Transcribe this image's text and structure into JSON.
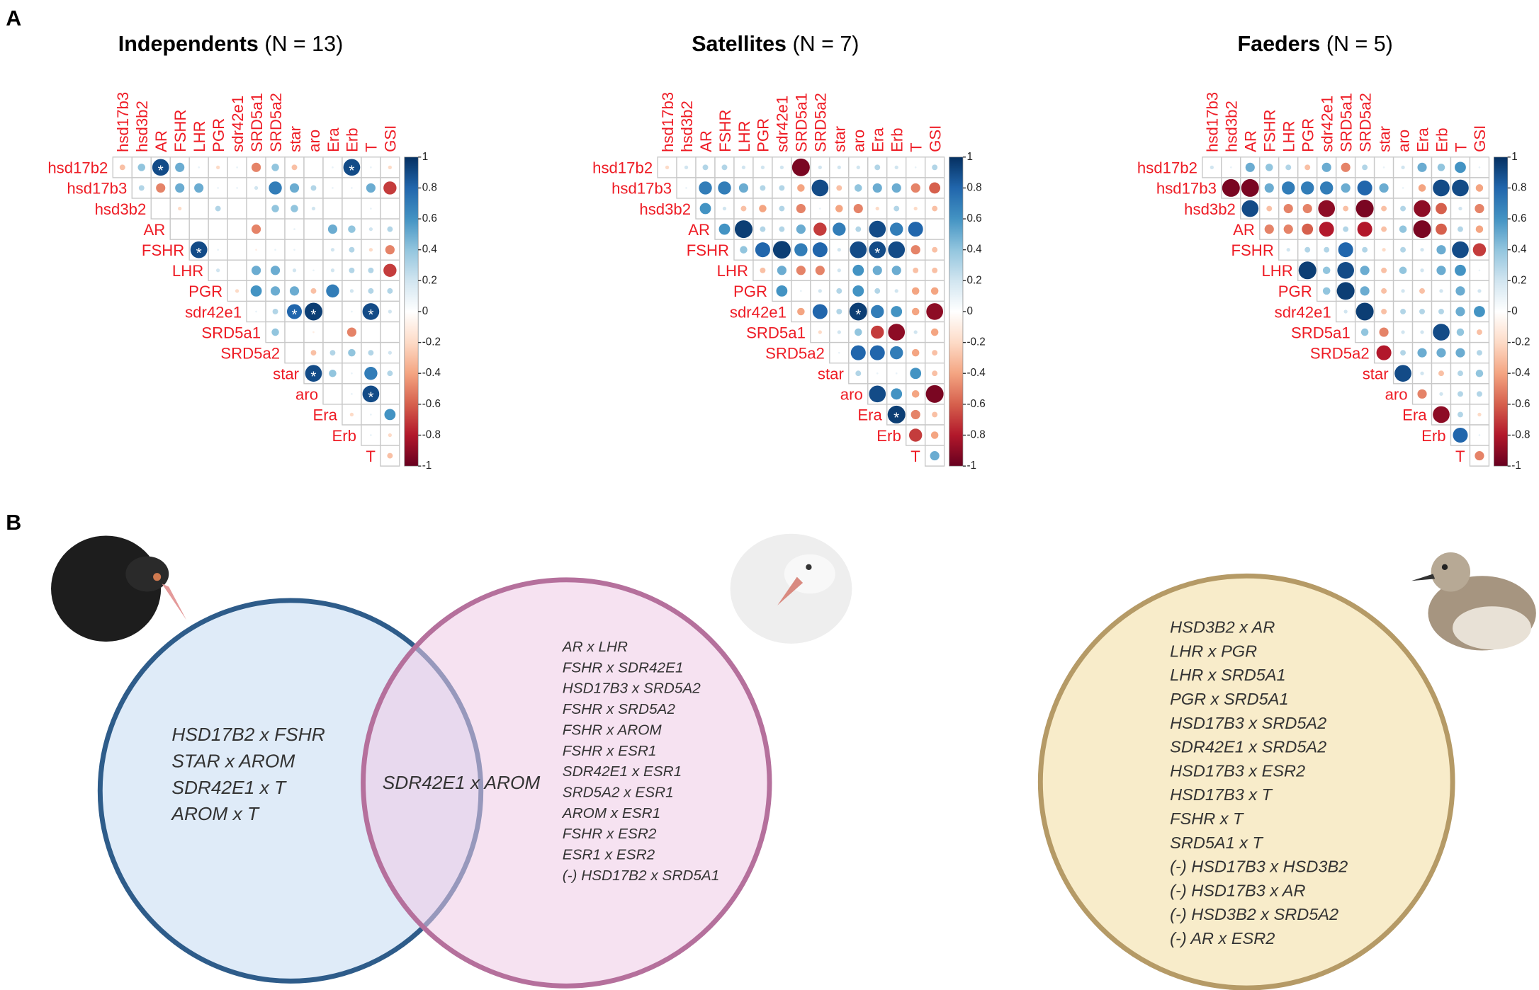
{
  "figure": {
    "panel_a_label": "A",
    "panel_b_label": "B"
  },
  "chart_data": [
    {
      "type": "corrplot",
      "title": "Independents",
      "subtitle": "(N = 13)",
      "rows": [
        "hsd17b2",
        "hsd17b3",
        "hsd3b2",
        "AR",
        "FSHR",
        "LHR",
        "PGR",
        "sdr42e1",
        "SRD5a1",
        "SRD5a2",
        "star",
        "aro",
        "Era",
        "Erb",
        "T"
      ],
      "cols": [
        "hsd17b3",
        "hsd3b2",
        "AR",
        "FSHR",
        "LHR",
        "PGR",
        "sdr42e1",
        "SRD5a1",
        "SRD5a2",
        "star",
        "aro",
        "Era",
        "Erb",
        "T",
        "GSI"
      ],
      "values": [
        [
          -0.3,
          0.4,
          0.9,
          0.5,
          0.1,
          -0.2,
          0.1,
          -0.5,
          0.4,
          -0.3,
          0,
          0.1,
          0.9,
          0.1,
          -0.2
        ],
        [
          0.3,
          -0.5,
          0.5,
          0.5,
          0.1,
          0.1,
          0.2,
          0.7,
          0.5,
          0.3,
          0.1,
          0.1,
          0.5,
          -0.7
        ],
        [
          0,
          -0.2,
          0,
          0.3,
          0,
          0,
          0.4,
          0.4,
          0.2,
          0,
          0,
          0.1,
          0
        ],
        [
          0,
          0,
          0,
          0,
          -0.5,
          0,
          0.1,
          0,
          0.5,
          0.4,
          0.2,
          0.3
        ],
        [
          0.9,
          0.1,
          0,
          -0.1,
          0.1,
          0.1,
          0,
          0.2,
          0.3,
          -0.2,
          -0.5
        ],
        [
          0.2,
          0,
          0.5,
          0.5,
          0.2,
          0.1,
          0.2,
          0.3,
          0.3,
          -0.7
        ],
        [
          -0.2,
          0.6,
          0.5,
          0.5,
          -0.3,
          0.7,
          0.2,
          0.3,
          0.3
        ],
        [
          0.1,
          0.3,
          0.8,
          0.95,
          0,
          0.1,
          0.9,
          0.2
        ],
        [
          0.4,
          0,
          -0.1,
          0,
          -0.5,
          0,
          0
        ],
        [
          0,
          -0.3,
          0.3,
          0.4,
          0.3,
          0.2
        ],
        [
          0.9,
          0.4,
          0.1,
          0.7,
          0.3
        ],
        [
          0,
          0.1,
          0.9,
          0
        ],
        [
          -0.2,
          0.1,
          0.6
        ],
        [
          0.1,
          -0.2
        ],
        [
          -0.3
        ]
      ],
      "stars": [
        [
          0,
          2
        ],
        [
          0,
          12
        ],
        [
          4,
          0
        ],
        [
          7,
          2
        ],
        [
          7,
          3
        ],
        [
          7,
          6
        ],
        [
          10,
          0
        ],
        [
          11,
          2
        ]
      ],
      "star_label": "*",
      "clim": [
        -1,
        1
      ],
      "cticks": [
        1,
        0.8,
        0.6,
        0.4,
        0.2,
        0,
        -0.2,
        -0.4,
        -0.6,
        -0.8,
        -1
      ],
      "colors": [
        "#67001F",
        "#B2182B",
        "#D6604D",
        "#F4A582",
        "#FDDBC7",
        "#FFFFFF",
        "#D1E5F0",
        "#92C5DE",
        "#4393C3",
        "#2166AC",
        "#053061"
      ]
    },
    {
      "type": "corrplot",
      "title": "Satellites",
      "subtitle": "(N = 7)",
      "rows": [
        "hsd17b2",
        "hsd17b3",
        "hsd3b2",
        "AR",
        "FSHR",
        "LHR",
        "PGR",
        "sdr42e1",
        "SRD5a1",
        "SRD5a2",
        "star",
        "aro",
        "Era",
        "Erb",
        "T"
      ],
      "cols": [
        "hsd17b3",
        "hsd3b2",
        "AR",
        "FSHR",
        "LHR",
        "PGR",
        "sdr42e1",
        "SRD5a1",
        "SRD5a2",
        "star",
        "aro",
        "Era",
        "Erb",
        "T",
        "GSI"
      ],
      "values": [
        [
          -0.2,
          0.2,
          0.3,
          0.3,
          0.2,
          0.2,
          0.2,
          -0.95,
          0.2,
          0.2,
          0.2,
          0.3,
          0.2,
          0.1,
          0.3
        ],
        [
          0.1,
          0.7,
          0.7,
          0.5,
          0.3,
          0.3,
          -0.4,
          0.9,
          -0.3,
          0.4,
          0.5,
          0.5,
          -0.5,
          -0.6
        ],
        [
          0.6,
          0.2,
          -0.3,
          -0.4,
          0.3,
          -0.5,
          0.1,
          -0.4,
          -0.5,
          -0.2,
          0.3,
          -0.2,
          -0.3
        ],
        [
          0.6,
          0.95,
          0.3,
          0.3,
          0.5,
          -0.7,
          0.7,
          0.3,
          0.9,
          0.7,
          0.8,
          0
        ],
        [
          0.4,
          0.8,
          0.95,
          0.7,
          0.8,
          0.2,
          0.9,
          0.9,
          0.9,
          -0.5,
          -0.3
        ],
        [
          -0.3,
          0.5,
          -0.5,
          -0.5,
          0.2,
          0.6,
          0.5,
          0.5,
          -0.3,
          -0.3
        ],
        [
          0.6,
          0.1,
          0.2,
          0.3,
          0.6,
          0.3,
          0.2,
          -0.4,
          -0.4
        ],
        [
          -0.4,
          0.8,
          0.3,
          0.95,
          0.7,
          0.6,
          -0.4,
          -0.9
        ],
        [
          -0.2,
          0.2,
          0.4,
          -0.7,
          -0.9,
          0.2,
          -0.4
        ],
        [
          0.1,
          0.8,
          0.8,
          0.7,
          -0.4,
          -0.3
        ],
        [
          0.3,
          0.1,
          0.1,
          0.6,
          -0.3
        ],
        [
          0.9,
          0.6,
          -0.4,
          -0.95
        ],
        [
          0.95,
          -0.5,
          -0.3
        ],
        [
          -0.7,
          -0.4
        ],
        [
          0.5
        ]
      ],
      "stars": [
        [
          4,
          7
        ],
        [
          7,
          3
        ],
        [
          12,
          0
        ]
      ],
      "star_label": "*",
      "clim": [
        -1,
        1
      ],
      "cticks": [
        1,
        0.8,
        0.6,
        0.4,
        0.2,
        0,
        -0.2,
        -0.4,
        -0.6,
        -0.8,
        -1
      ],
      "colors": [
        "#67001F",
        "#B2182B",
        "#D6604D",
        "#F4A582",
        "#FDDBC7",
        "#FFFFFF",
        "#D1E5F0",
        "#92C5DE",
        "#4393C3",
        "#2166AC",
        "#053061"
      ]
    },
    {
      "type": "corrplot",
      "title": "Faeders",
      "subtitle": "(N = 5)",
      "rows": [
        "hsd17b2",
        "hsd17b3",
        "hsd3b2",
        "AR",
        "FSHR",
        "LHR",
        "PGR",
        "sdr42e1",
        "SRD5a1",
        "SRD5a2",
        "star",
        "aro",
        "Era",
        "Erb",
        "T"
      ],
      "cols": [
        "hsd17b3",
        "hsd3b2",
        "AR",
        "FSHR",
        "LHR",
        "PGR",
        "sdr42e1",
        "SRD5a1",
        "SRD5a2",
        "star",
        "aro",
        "Era",
        "Erb",
        "T",
        "GSI"
      ],
      "values": [
        [
          0.2,
          0.1,
          0.5,
          0.4,
          0.3,
          -0.3,
          0.5,
          -0.5,
          0.3,
          0.1,
          0.2,
          0.5,
          0.4,
          0.6,
          0.1
        ],
        [
          -0.95,
          -0.95,
          0.5,
          0.7,
          0.7,
          0.7,
          0.5,
          0.8,
          0.5,
          0.1,
          -0.4,
          0.9,
          0.9,
          -0.4
        ],
        [
          0.9,
          -0.3,
          -0.5,
          -0.5,
          -0.9,
          -0.3,
          -0.95,
          -0.3,
          0.3,
          -0.9,
          -0.6,
          0.2,
          -0.5
        ],
        [
          -0.5,
          -0.5,
          -0.6,
          -0.8,
          0.3,
          -0.8,
          -0.3,
          0.4,
          -0.95,
          -0.6,
          0.3,
          -0.4
        ],
        [
          0.2,
          0.3,
          0.3,
          0.8,
          0.3,
          -0.2,
          0.3,
          0.2,
          0.5,
          0.9,
          -0.7
        ],
        [
          0.95,
          0.4,
          0.9,
          0.5,
          -0.3,
          0.4,
          0.2,
          0.5,
          0.6,
          0.1
        ],
        [
          0.4,
          0.95,
          0.5,
          -0.3,
          0.2,
          -0.3,
          0.2,
          0.5,
          0.2
        ],
        [
          0.2,
          0.95,
          -0.3,
          0.3,
          0.3,
          0.3,
          0.5,
          0.6
        ],
        [
          0.4,
          -0.5,
          0.2,
          0.2,
          0.9,
          0.4,
          -0.3
        ],
        [
          -0.8,
          0.3,
          0.5,
          0.5,
          0.5,
          0.3
        ],
        [
          0.9,
          0.2,
          -0.3,
          0.3,
          0.4
        ],
        [
          -0.5,
          0.2,
          0.3,
          0.3
        ],
        [
          -0.9,
          0.3,
          -0.2
        ],
        [
          0.8,
          0.1
        ],
        [
          -0.5
        ]
      ],
      "stars": [],
      "star_label": "*",
      "clim": [
        -1,
        1
      ],
      "cticks": [
        1,
        0.8,
        0.6,
        0.4,
        0.2,
        0,
        -0.2,
        -0.4,
        -0.6,
        -0.8,
        -1
      ],
      "colors": [
        "#67001F",
        "#B2182B",
        "#D6604D",
        "#F4A582",
        "#FDDBC7",
        "#FFFFFF",
        "#D1E5F0",
        "#92C5DE",
        "#4393C3",
        "#2166AC",
        "#053061"
      ]
    }
  ],
  "panel_b": {
    "independents_only": [
      "HSD17B2 x FSHR",
      "STAR x AROM",
      "SDR42E1 x T",
      "AROM x T"
    ],
    "shared": [
      "SDR42E1 x AROM"
    ],
    "satellites_only": [
      "AR x LHR",
      "FSHR x SDR42E1",
      "HSD17B3 x SRD5A2",
      "FSHR x SRD5A2",
      "FSHR x AROM",
      "FSHR x ESR1",
      "SDR42E1 x ESR1",
      "SRD5A2 x ESR1",
      "AROM x ESR1",
      "FSHR x ESR2",
      "ESR1 x ESR2",
      "(-) HSD17B2 x SRD5A1"
    ],
    "faeders": [
      "HSD3B2 x AR",
      "LHR x PGR",
      "LHR x SRD5A1",
      "PGR x SRD5A1",
      "HSD17B3 x SRD5A2",
      "SDR42E1 x SRD5A2",
      "HSD17B3 x ESR2",
      "HSD17B3 x T",
      "FSHR x T",
      "SRD5A1 x T",
      "(-) HSD17B3 x HSD3B2",
      "(-) HSD17B3 x AR",
      "(-) HSD3B2 x SRD5A2",
      "(-) AR x ESR2"
    ]
  }
}
